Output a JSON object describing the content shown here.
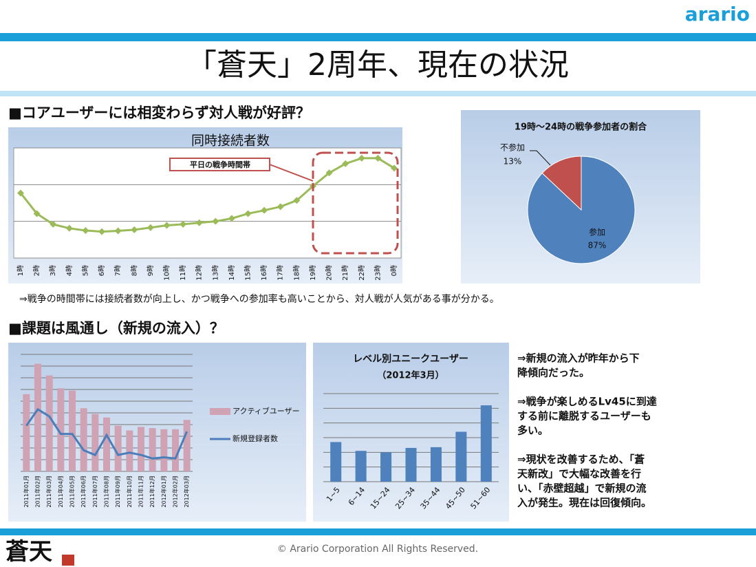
{
  "header": {
    "logo": "arario",
    "title": "「蒼天」2周年、現在の状況"
  },
  "sections": [
    {
      "heading": "■コアユーザーには相変わらず対人戦が好評？",
      "note": "⇒戦争の時間帯には接続者数が向上し、かつ戦争への参加率も高いことから、対人戦が人気がある事が分かる。"
    },
    {
      "heading": "■課題は風通し（新規の流入）？",
      "notes": [
        [
          "⇒新規の流入が昨年から下",
          "降傾向だった。"
        ],
        [
          "⇒戦争が楽しめるLv45に到達",
          "する前に離脱するユーザーも",
          "多い。"
        ],
        [
          "⇒現状を改善するため、「蒼",
          "天新改」で大幅な改善を行",
          "い、「赤壁超越」で新規の流",
          "入が発生。現在は回復傾向。"
        ]
      ]
    }
  ],
  "chart_data": [
    {
      "type": "line",
      "title": "同時接続者数",
      "annotation": "平日の戦争時間帯",
      "color": "#9bbb59",
      "categories": [
        "1時",
        "2時",
        "3時",
        "4時",
        "5時",
        "6時",
        "7時",
        "8時",
        "9時",
        "10時",
        "11時",
        "12時",
        "13時",
        "14時",
        "15時",
        "16時",
        "17時",
        "18時",
        "19時",
        "20時",
        "21時",
        "22時",
        "23時",
        "0時"
      ],
      "values": [
        1.77,
        1.21,
        0.92,
        0.81,
        0.75,
        0.72,
        0.74,
        0.77,
        0.83,
        0.89,
        0.92,
        0.96,
        1.0,
        1.08,
        1.21,
        1.3,
        1.4,
        1.57,
        1.96,
        2.32,
        2.57,
        2.72,
        2.72,
        2.45
      ],
      "ylim": [
        0,
        3
      ],
      "yticks": [
        0,
        1,
        2,
        3
      ],
      "grid": true
    },
    {
      "type": "pie",
      "title": "19時～24時の戦争参加者の割合",
      "categories": [
        "参加",
        "不参加"
      ],
      "values": [
        87,
        13
      ],
      "value_labels": [
        "87%",
        "13%"
      ],
      "colors": [
        "#4f81bd",
        "#c0504d"
      ]
    },
    {
      "type": "combo",
      "categories": [
        "2011年01月",
        "2011年02月",
        "2011年03月",
        "2011年04月",
        "2011年05月",
        "2011年06月",
        "2011年07月",
        "2011年08月",
        "2011年09月",
        "2011年10月",
        "2011年11月",
        "2011年12月",
        "2012年01月",
        "2012年02月",
        "2012年03月"
      ],
      "series": [
        {
          "name": "アクティブユーザー",
          "type": "bar",
          "color": "#cfa3b4",
          "values": [
            6.6,
            9.2,
            8.2,
            7.1,
            6.9,
            5.4,
            4.9,
            4.6,
            3.9,
            3.5,
            3.8,
            3.7,
            3.6,
            3.6,
            4.4
          ]
        },
        {
          "name": "新規登録者数",
          "type": "line",
          "color": "#4a7ebb",
          "values": [
            3.9,
            5.3,
            4.7,
            3.2,
            3.2,
            1.8,
            1.4,
            3.1,
            1.4,
            1.6,
            1.4,
            1.1,
            1.2,
            1.1,
            3.4
          ]
        }
      ],
      "ylim": [
        0,
        10
      ],
      "yticks": [
        0,
        1,
        2,
        3,
        4,
        5,
        6,
        7,
        8,
        9,
        10
      ],
      "grid": true,
      "legend": "right"
    },
    {
      "type": "bar",
      "title": "レベル別ユニークユーザー",
      "subtitle": "（2012年3月）",
      "color": "#4f81bd",
      "categories": [
        "1~5",
        "6~14",
        "15~24",
        "25~34",
        "35~44",
        "45~50",
        "51~60"
      ],
      "values": [
        2.7,
        2.1,
        2.0,
        2.3,
        2.35,
        3.4,
        5.2
      ],
      "ylim": [
        0,
        6
      ],
      "yticks": [
        0,
        1,
        2,
        3,
        4,
        5,
        6
      ],
      "grid": true
    }
  ],
  "footer": {
    "copyright": "© Arario Corporation All Rights Reserved.",
    "logo": "蒼天"
  }
}
